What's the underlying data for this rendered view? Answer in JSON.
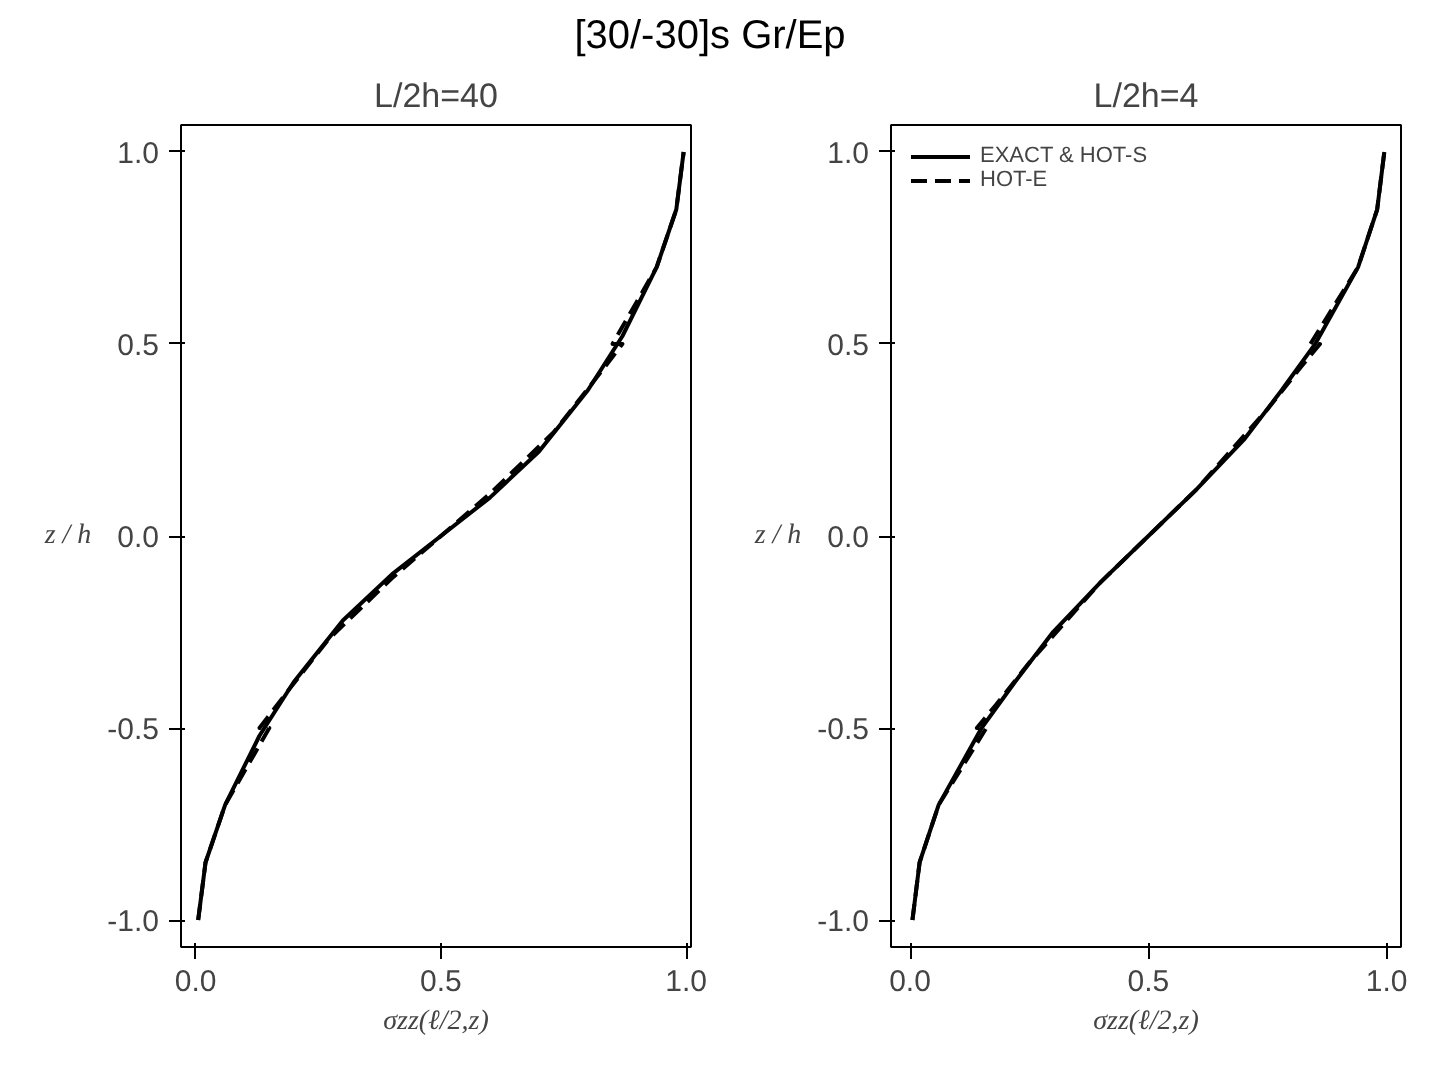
{
  "chart_data": [
    {
      "type": "line",
      "title": "[30/-30]s Gr/Ep",
      "subtitle": "L/2h=40",
      "xlabel": "σzz(ℓ/2,z)",
      "ylabel": "z / h",
      "xlim": [
        -0.03,
        1.01
      ],
      "ylim": [
        -1.07,
        1.07
      ],
      "xticks": [
        {
          "value": 0,
          "label": "0.0"
        },
        {
          "value": 0.5,
          "label": "0.5"
        },
        {
          "value": 1,
          "label": "1.0"
        }
      ],
      "yticks": [
        {
          "value": -1,
          "label": "-1.0"
        },
        {
          "value": -0.5,
          "label": "-0.5"
        },
        {
          "value": 0,
          "label": "0.0"
        },
        {
          "value": 0.5,
          "label": "0.5"
        },
        {
          "value": 1,
          "label": "1.0"
        }
      ],
      "grid": false,
      "legend": false,
      "series": [
        {
          "color": "#000000",
          "line_style": "solid",
          "x": [
            0.005,
            0.02,
            0.06,
            0.13,
            0.2,
            0.3,
            0.4,
            0.5,
            0.6,
            0.7,
            0.8,
            0.87,
            0.94,
            0.98,
            0.995
          ],
          "values": [
            -1.0,
            -0.85,
            -0.7,
            -0.52,
            -0.38,
            -0.22,
            -0.1,
            0,
            0.1,
            0.22,
            0.38,
            0.52,
            0.7,
            0.85,
            1.0
          ]
        },
        {
          "color": "#000000",
          "line_style": "dashed",
          "x": [
            0.005,
            0.02,
            0.06,
            0.15,
            0.13,
            0.19,
            0.27,
            0.4,
            0.5,
            0.6,
            0.73,
            0.81,
            0.87,
            0.85,
            0.94,
            0.98,
            0.995
          ],
          "values": [
            -1.0,
            -0.85,
            -0.7,
            -0.5,
            -0.5,
            -0.4,
            -0.27,
            -0.11,
            0,
            0.11,
            0.27,
            0.4,
            0.5,
            0.5,
            0.7,
            0.85,
            1.0
          ]
        }
      ]
    },
    {
      "type": "line",
      "subtitle": "L/2h=4",
      "xlabel": "σzz(ℓ/2,z)",
      "ylabel": "z / h",
      "xlim": [
        -0.04,
        1.03
      ],
      "ylim": [
        -1.07,
        1.07
      ],
      "xticks": [
        {
          "value": 0,
          "label": "0.0"
        },
        {
          "value": 0.5,
          "label": "0.5"
        },
        {
          "value": 1,
          "label": "1.0"
        }
      ],
      "yticks": [
        {
          "value": -1,
          "label": "-1.0"
        },
        {
          "value": -0.5,
          "label": "-0.5"
        },
        {
          "value": 0,
          "label": "0.0"
        },
        {
          "value": 0.5,
          "label": "0.5"
        },
        {
          "value": 1,
          "label": "1.0"
        }
      ],
      "grid": false,
      "legend": "top left",
      "series": [
        {
          "name": "EXACT & HOT-S",
          "color": "#000000",
          "line_style": "solid",
          "x": [
            0.005,
            0.02,
            0.06,
            0.15,
            0.22,
            0.3,
            0.4,
            0.5,
            0.6,
            0.7,
            0.78,
            0.85,
            0.94,
            0.98,
            0.995
          ],
          "values": [
            -1.0,
            -0.85,
            -0.7,
            -0.5,
            -0.38,
            -0.25,
            -0.12,
            0,
            0.12,
            0.25,
            0.38,
            0.5,
            0.7,
            0.85,
            1.0
          ]
        },
        {
          "name": "HOT-E",
          "color": "#000000",
          "line_style": "dashed",
          "x": [
            0.005,
            0.02,
            0.06,
            0.16,
            0.14,
            0.18,
            0.25,
            0.4,
            0.5,
            0.6,
            0.75,
            0.82,
            0.86,
            0.84,
            0.94,
            0.98,
            0.995
          ],
          "values": [
            -1.0,
            -0.85,
            -0.7,
            -0.5,
            -0.5,
            -0.44,
            -0.33,
            -0.12,
            0,
            0.12,
            0.33,
            0.44,
            0.5,
            0.5,
            0.7,
            0.85,
            1.0
          ]
        }
      ]
    }
  ]
}
